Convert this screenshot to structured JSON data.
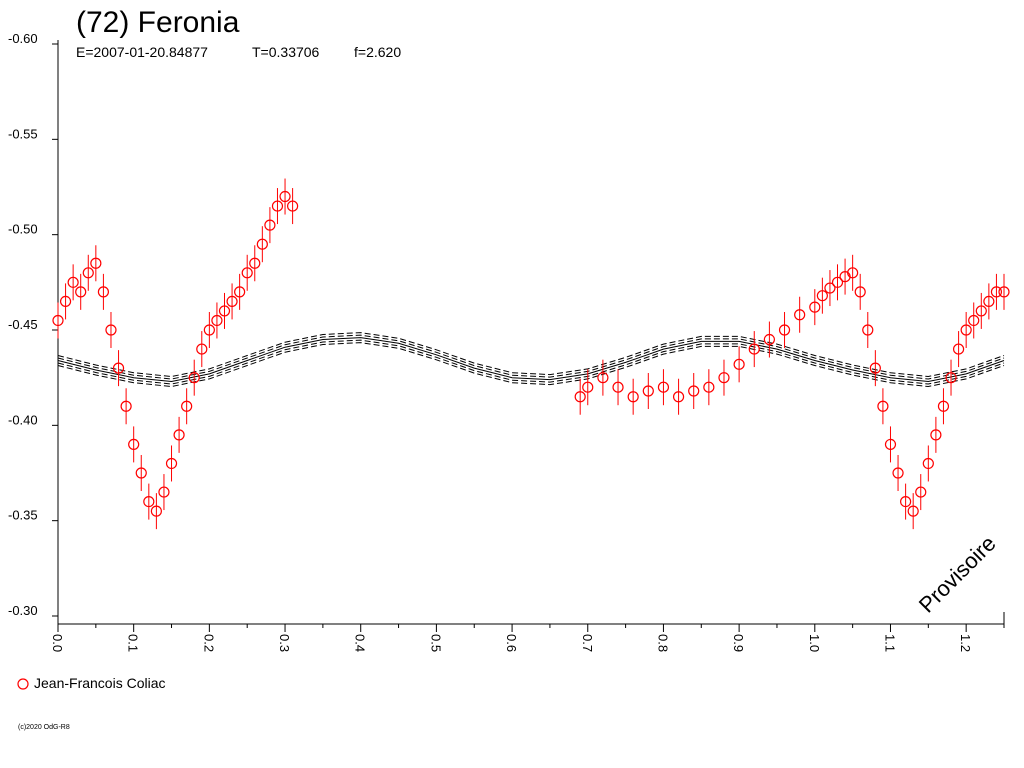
{
  "title": "(72) Feronia",
  "subtitle": {
    "epoch": "E=2007-01-20.84877",
    "period": "T=0.33706",
    "frequency": "f=2.620"
  },
  "watermark": "Provisoire",
  "copyright": "(c)2020 OdG-R8",
  "colors": {
    "data": "#ff0000",
    "model": "#000000",
    "axis": "#000000"
  },
  "chart_data": {
    "type": "scatter",
    "title": "(72) Feronia",
    "xlabel": "",
    "ylabel": "",
    "xlim": [
      0.0,
      1.25
    ],
    "ylim": [
      -0.6,
      -0.3
    ],
    "y_inverted": true,
    "grid": false,
    "legend": "bottom-left",
    "x_ticks": [
      "0.0",
      "0.1",
      "0.2",
      "0.3",
      "0.4",
      "0.5",
      "0.6",
      "0.7",
      "0.8",
      "0.9",
      "1.0",
      "1.1",
      "1.2"
    ],
    "y_ticks": [
      "-0.60",
      "-0.55",
      "-0.50",
      "-0.45",
      "-0.40",
      "-0.35",
      "-0.30"
    ],
    "series": [
      {
        "name": "Jean-Francois Coliac",
        "marker": "open-circle",
        "error_bars": true,
        "x": [
          0.0,
          0.01,
          0.02,
          0.03,
          0.04,
          0.05,
          0.06,
          0.07,
          0.08,
          0.09,
          0.1,
          0.11,
          0.12,
          0.13,
          0.14,
          0.15,
          0.16,
          0.17,
          0.18,
          0.19,
          0.2,
          0.21,
          0.22,
          0.23,
          0.24,
          0.25,
          0.26,
          0.27,
          0.28,
          0.29,
          0.3,
          0.31,
          0.69,
          0.7,
          0.72,
          0.74,
          0.76,
          0.78,
          0.8,
          0.82,
          0.84,
          0.86,
          0.88,
          0.9,
          0.92,
          0.94,
          0.96,
          0.98,
          1.0,
          1.01,
          1.02,
          1.03,
          1.04,
          1.05,
          1.06,
          1.07,
          1.08,
          1.09,
          1.1,
          1.11,
          1.12,
          1.13,
          1.14,
          1.15,
          1.16,
          1.17,
          1.18,
          1.19,
          1.2,
          1.21,
          1.22,
          1.23,
          1.24,
          1.25
        ],
        "y": [
          -0.455,
          -0.465,
          -0.475,
          -0.47,
          -0.48,
          -0.485,
          -0.47,
          -0.45,
          -0.43,
          -0.41,
          -0.39,
          -0.375,
          -0.36,
          -0.355,
          -0.365,
          -0.38,
          -0.395,
          -0.41,
          -0.425,
          -0.44,
          -0.45,
          -0.455,
          -0.46,
          -0.465,
          -0.47,
          -0.48,
          -0.485,
          -0.495,
          -0.505,
          -0.515,
          -0.52,
          -0.515,
          -0.415,
          -0.42,
          -0.425,
          -0.42,
          -0.415,
          -0.418,
          -0.42,
          -0.415,
          -0.418,
          -0.42,
          -0.425,
          -0.432,
          -0.44,
          -0.445,
          -0.45,
          -0.458,
          -0.462,
          -0.468,
          -0.472,
          -0.475,
          -0.478,
          -0.48,
          -0.47,
          -0.45,
          -0.43,
          -0.41,
          -0.39,
          -0.375,
          -0.36,
          -0.355,
          -0.365,
          -0.38,
          -0.395,
          -0.41,
          -0.425,
          -0.44,
          -0.45,
          -0.455,
          -0.46,
          -0.465,
          -0.47,
          -0.47
        ],
        "color": "#ff0000"
      },
      {
        "name": "",
        "type": "line",
        "x": [
          0.0,
          0.05,
          0.1,
          0.15,
          0.2,
          0.25,
          0.3,
          0.35,
          0.4,
          0.45,
          0.5,
          0.55,
          0.6,
          0.65,
          0.7,
          0.75,
          0.8,
          0.85,
          0.9,
          0.95,
          1.0,
          1.05,
          1.1,
          1.15,
          1.2,
          1.25
        ],
        "y": [
          -0.434,
          -0.429,
          -0.425,
          -0.423,
          -0.427,
          -0.434,
          -0.441,
          -0.445,
          -0.446,
          -0.443,
          -0.437,
          -0.43,
          -0.425,
          -0.424,
          -0.427,
          -0.433,
          -0.44,
          -0.444,
          -0.444,
          -0.44,
          -0.434,
          -0.429,
          -0.425,
          -0.423,
          -0.427,
          -0.434
        ],
        "color": "#000000"
      }
    ]
  }
}
